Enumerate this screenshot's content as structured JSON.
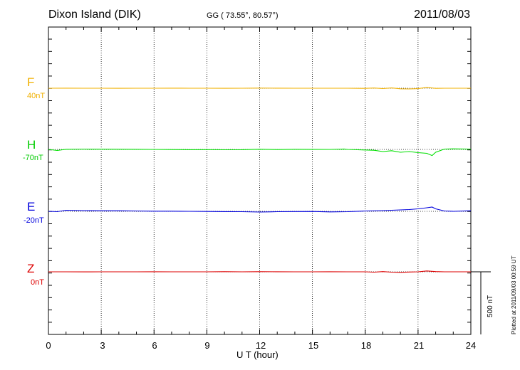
{
  "header": {
    "station": "Dixon Island (DIK)",
    "coords": "GG ( 73.55°,  80.57°)",
    "date": "2011/08/03"
  },
  "plotted_at": "Plotted at 2011/09/03 00:59 UT",
  "chart_data": {
    "type": "line",
    "xlabel": "U T (hour)",
    "xlim": [
      0,
      24
    ],
    "xticks": [
      "0",
      "3",
      "6",
      "9",
      "12",
      "15",
      "18",
      "21",
      "24"
    ],
    "scale_label": "500 nT",
    "scale_nT": 500,
    "series": [
      {
        "name": "F",
        "baseline": "40nT",
        "color": "#f0b000",
        "x": [
          0,
          1,
          2,
          3,
          4,
          5,
          6,
          7,
          8,
          9,
          10,
          11,
          12,
          13,
          14,
          15,
          16,
          17,
          18,
          18.5,
          19,
          19.5,
          20,
          20.5,
          21,
          21.5,
          22,
          22.5,
          23,
          24
        ],
        "values": [
          0,
          1,
          0,
          0,
          -1,
          0,
          0,
          1,
          0,
          0,
          -1,
          0,
          2,
          1,
          0,
          0,
          0,
          0,
          -2,
          3,
          -5,
          4,
          -8,
          -10,
          -6,
          12,
          -2,
          0,
          0,
          0
        ]
      },
      {
        "name": "H",
        "baseline": "-70nT",
        "color": "#00e000",
        "x": [
          0,
          0.5,
          1,
          2,
          3,
          4,
          5,
          6,
          7,
          8,
          9,
          10,
          11,
          12,
          13,
          14,
          15,
          16,
          16.8,
          17,
          18,
          18.5,
          19,
          19.5,
          20,
          20.5,
          21,
          21.5,
          21.8,
          22,
          22.5,
          23,
          24
        ],
        "values": [
          0,
          -15,
          2,
          5,
          4,
          3,
          2,
          0,
          -2,
          -4,
          -3,
          -5,
          -4,
          3,
          -2,
          2,
          1,
          0,
          6,
          0,
          -8,
          -12,
          -30,
          -18,
          -40,
          -30,
          -45,
          -55,
          -85,
          -40,
          5,
          8,
          5
        ]
      },
      {
        "name": "E",
        "baseline": "-20nT",
        "color": "#0000dd",
        "x": [
          0,
          0.5,
          1,
          2,
          3,
          4,
          5,
          6,
          7,
          8,
          9,
          10,
          11,
          12,
          13,
          14,
          15,
          16,
          17,
          18,
          19,
          20,
          20.5,
          21,
          21.5,
          21.8,
          22,
          22.5,
          23,
          24
        ],
        "values": [
          0,
          -5,
          15,
          10,
          8,
          8,
          5,
          2,
          2,
          0,
          -2,
          -4,
          -5,
          -10,
          -5,
          -3,
          -2,
          -8,
          -5,
          5,
          10,
          20,
          25,
          35,
          50,
          60,
          35,
          5,
          0,
          8
        ]
      },
      {
        "name": "Z",
        "baseline": "0nT",
        "color": "#dd0000",
        "x": [
          0,
          1,
          2,
          3,
          4,
          5,
          6,
          7,
          8,
          9,
          10,
          11,
          12,
          13,
          14,
          15,
          16,
          17,
          18,
          18.5,
          19,
          19.5,
          20,
          20.5,
          21,
          21.5,
          22,
          22.5,
          23,
          24
        ],
        "values": [
          0,
          0,
          -1,
          0,
          0,
          0,
          1,
          0,
          0,
          0,
          2,
          0,
          2,
          1,
          0,
          0,
          1,
          0,
          0,
          -5,
          3,
          -5,
          -8,
          -3,
          0,
          12,
          3,
          0,
          0,
          0
        ]
      }
    ]
  }
}
